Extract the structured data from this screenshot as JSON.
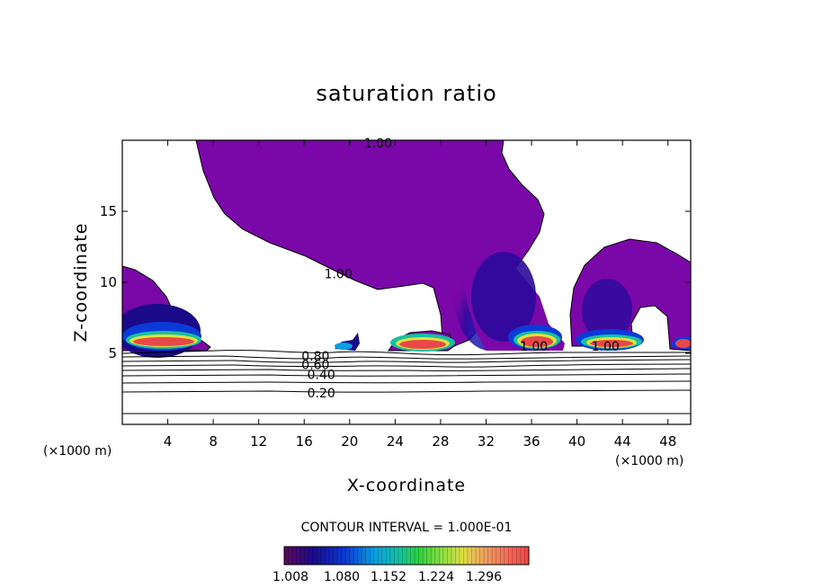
{
  "chart_data": {
    "type": "contour",
    "title": "saturation ratio",
    "xlabel": "X-coordinate",
    "ylabel": "Z-coordinate",
    "x_unit": "(×1000 m)",
    "z_unit": "(×1000 m)",
    "xlim": [
      0,
      50
    ],
    "ylim": [
      0,
      20
    ],
    "x_ticks": [
      4,
      8,
      12,
      16,
      20,
      24,
      28,
      32,
      36,
      40,
      44,
      48
    ],
    "y_ticks": [
      5,
      10,
      15
    ],
    "contour_interval_label": "CONTOUR INTERVAL = 1.000E-01",
    "contour_labels": [
      {
        "text": "1.00",
        "x": 22.5,
        "z": 19.8
      },
      {
        "text": "1.00",
        "x": 19.0,
        "z": 10.6
      },
      {
        "text": "1.00",
        "x": 36.2,
        "z": 5.5
      },
      {
        "text": "1.00",
        "x": 42.5,
        "z": 5.5
      },
      {
        "text": "0.80",
        "x": 17.0,
        "z": 4.8
      },
      {
        "text": "0.60",
        "x": 17.0,
        "z": 4.2
      },
      {
        "text": "0.40",
        "x": 17.5,
        "z": 3.5
      },
      {
        "text": "0.20",
        "x": 17.5,
        "z": 2.2
      }
    ],
    "colorbar": {
      "ticks": [
        "1.008",
        "1.080",
        "1.152",
        "1.224",
        "1.296"
      ],
      "colors": [
        "#5a0a5a",
        "#1a0a8a",
        "#0a3ad8",
        "#0aa0e0",
        "#18c0a0",
        "#30d040",
        "#90e040",
        "#e0e040",
        "#f0a060",
        "#f06a5a",
        "#e84848"
      ]
    }
  }
}
